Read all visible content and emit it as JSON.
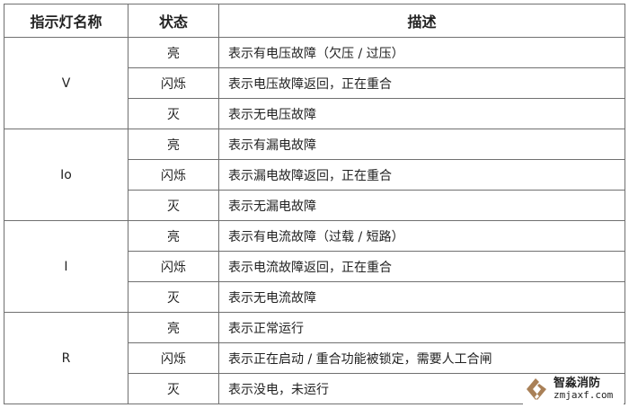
{
  "headers": [
    "指示灯名称",
    "状态",
    "描述"
  ],
  "groups": [
    {
      "name": "V",
      "rows": [
        {
          "state": "亮",
          "desc": "表示有电压故障（欠压 / 过压）"
        },
        {
          "state": "闪烁",
          "desc": "表示电压故障返回，正在重合"
        },
        {
          "state": "灭",
          "desc": "表示无电压故障"
        }
      ]
    },
    {
      "name": "Io",
      "rows": [
        {
          "state": "亮",
          "desc": "表示有漏电故障"
        },
        {
          "state": "闪烁",
          "desc": "表示漏电故障返回，正在重合"
        },
        {
          "state": "灭",
          "desc": "表示无漏电故障"
        }
      ]
    },
    {
      "name": "I",
      "rows": [
        {
          "state": "亮",
          "desc": "表示有电流故障（过载 / 短路）"
        },
        {
          "state": "闪烁",
          "desc": "表示电流故障返回，正在重合"
        },
        {
          "state": "灭",
          "desc": "表示无电流故障"
        }
      ]
    },
    {
      "name": "R",
      "rows": [
        {
          "state": "亮",
          "desc": "表示正常运行"
        },
        {
          "state": "闪烁",
          "desc": "表示正在启动 / 重合功能被锁定，需要人工合闸"
        },
        {
          "state": "灭",
          "desc": "表示没电，未运行"
        }
      ]
    }
  ],
  "watermark": {
    "cn": "智淼消防",
    "en": "zmjaxf.com",
    "color": "#9a6a3a"
  }
}
